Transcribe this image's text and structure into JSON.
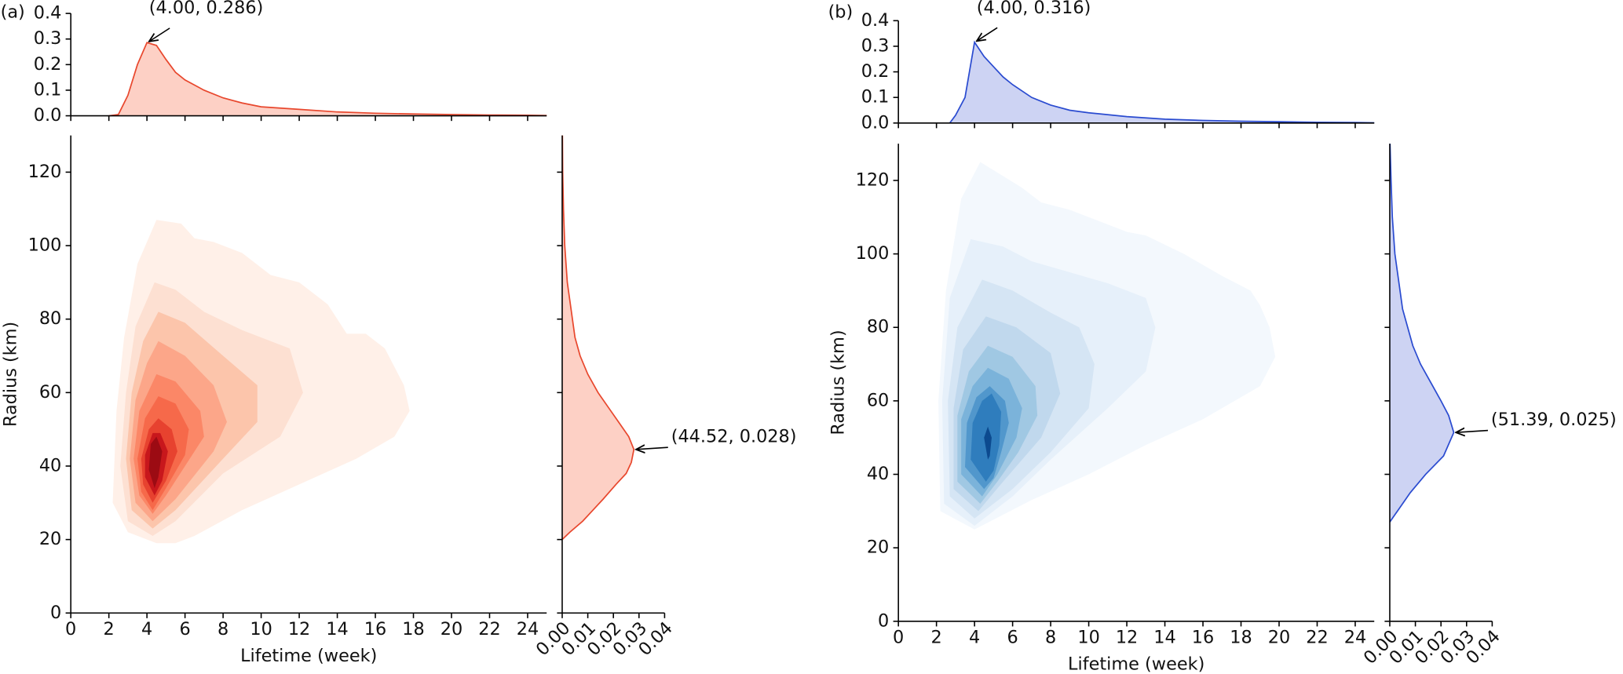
{
  "chart_data": [
    {
      "type": "contour",
      "label": "(a)",
      "xlabel": "Lifetime (week)",
      "ylabel": "Radius (km)",
      "xlim": [
        0,
        25
      ],
      "ylim": [
        0,
        130
      ],
      "xticks": [
        0,
        2,
        4,
        6,
        8,
        10,
        12,
        14,
        16,
        18,
        20,
        22,
        24
      ],
      "yticks": [
        0,
        20,
        40,
        60,
        80,
        100,
        120
      ],
      "contours": [
        {
          "color": "#fff0e8",
          "x": [
            4.5,
            3,
            2.2,
            2.4,
            2.8,
            3.5,
            4.5,
            5.8,
            6.5,
            7.5,
            9,
            10.5,
            12,
            13.5,
            14.5,
            15.5,
            16.5,
            17.5,
            17.8,
            17,
            15,
            12,
            9,
            6.5,
            5.5
          ],
          "y": [
            19,
            22,
            30,
            55,
            75,
            95,
            107,
            106,
            102,
            101,
            98,
            92,
            90,
            84,
            76,
            76,
            72,
            62,
            55,
            48,
            42,
            35,
            28,
            21,
            19
          ]
        },
        {
          "color": "#fde0d2",
          "x": [
            4.3,
            3,
            2.6,
            2.9,
            3.4,
            4.4,
            5.5,
            7,
            9,
            11.5,
            12.2,
            11,
            8,
            5.5
          ],
          "y": [
            21,
            25,
            40,
            60,
            78,
            90,
            88,
            82,
            77,
            72,
            60,
            48,
            38,
            25
          ]
        },
        {
          "color": "#fcc5ab",
          "x": [
            4.3,
            3.2,
            2.9,
            3.2,
            3.8,
            4.6,
            6,
            8,
            9.8,
            9.8,
            8,
            5.5
          ],
          "y": [
            23,
            28,
            42,
            60,
            74,
            82,
            79,
            70,
            62,
            52,
            42,
            28
          ]
        },
        {
          "color": "#fca689",
          "x": [
            4.3,
            3.4,
            3.1,
            3.4,
            4,
            4.6,
            6,
            7.5,
            8.2,
            7.5,
            5.5
          ],
          "y": [
            25,
            30,
            42,
            58,
            68,
            74,
            70,
            62,
            52,
            44,
            31
          ]
        },
        {
          "color": "#fb8767",
          "x": [
            4.3,
            3.6,
            3.3,
            3.6,
            4.5,
            5.5,
            6.8,
            7,
            6,
            5
          ],
          "y": [
            27,
            32,
            42,
            55,
            65,
            63,
            55,
            48,
            40,
            32
          ]
        },
        {
          "color": "#f6694a",
          "x": [
            4.3,
            3.7,
            3.5,
            3.9,
            4.6,
            5.5,
            6.2,
            6,
            5
          ],
          "y": [
            28,
            33,
            42,
            53,
            59,
            57,
            50,
            43,
            34
          ]
        },
        {
          "color": "#e7422f",
          "x": [
            4.3,
            3.8,
            3.7,
            4.1,
            4.6,
            5.3,
            5.6,
            5
          ],
          "y": [
            30,
            35,
            42,
            50,
            53,
            50,
            44,
            36
          ]
        },
        {
          "color": "#c8171c",
          "x": [
            4.4,
            3.9,
            3.9,
            4.3,
            4.7,
            5.1,
            4.8
          ],
          "y": [
            32,
            37,
            43,
            49,
            49,
            44,
            36
          ]
        },
        {
          "color": "#9c0b13",
          "x": [
            4.4,
            4.1,
            4.2,
            4.5,
            4.8,
            4.6
          ],
          "y": [
            34,
            39,
            46,
            48,
            44,
            37
          ]
        }
      ],
      "line_color": "#e8472d",
      "fill_color": "#fdd0c5",
      "top": {
        "x": [
          2,
          2.5,
          3,
          3.5,
          4,
          4.5,
          5,
          5.5,
          6,
          7,
          8,
          9,
          10,
          12,
          14,
          16,
          18,
          20,
          22,
          24,
          25
        ],
        "values": [
          0,
          0.005,
          0.08,
          0.2,
          0.286,
          0.275,
          0.22,
          0.17,
          0.14,
          0.1,
          0.07,
          0.05,
          0.035,
          0.025,
          0.015,
          0.01,
          0.007,
          0.005,
          0.003,
          0.002,
          0.001
        ],
        "ylim": [
          0,
          0.4
        ],
        "yticks": [
          {
            "value": 0,
            "label": "0.0"
          },
          {
            "value": 0.1,
            "label": "0.1"
          },
          {
            "value": 0.2,
            "label": "0.2"
          },
          {
            "value": 0.3,
            "label": "0.3"
          },
          {
            "value": 0.4,
            "label": "0.4"
          }
        ],
        "annotation": {
          "text": "(4.00, 0.286)",
          "x": 4,
          "y": 0.286
        }
      },
      "right": {
        "x": [
          20,
          22,
          25,
          28,
          31,
          35,
          38,
          41,
          44.52,
          48,
          52,
          56,
          60,
          65,
          70,
          75,
          80,
          85,
          90,
          100,
          110,
          120,
          130
        ],
        "values": [
          0,
          0.003,
          0.008,
          0.012,
          0.016,
          0.021,
          0.025,
          0.027,
          0.028,
          0.026,
          0.022,
          0.018,
          0.014,
          0.01,
          0.007,
          0.005,
          0.004,
          0.003,
          0.002,
          0.001,
          0.0005,
          0.0002,
          0.0001
        ],
        "xlim": [
          0,
          0.04
        ],
        "xticks": [
          {
            "value": 0,
            "label": "0.00"
          },
          {
            "value": 0.01,
            "label": "0.01"
          },
          {
            "value": 0.02,
            "label": "0.02"
          },
          {
            "value": 0.03,
            "label": "0.03"
          },
          {
            "value": 0.04,
            "label": "0.04"
          }
        ],
        "annotation": {
          "text": "(44.52, 0.028)",
          "x": 44.52,
          "y": 0.028
        }
      }
    },
    {
      "type": "contour",
      "label": "(b)",
      "xlabel": "Lifetime (week)",
      "ylabel": "Radius (km)",
      "xlim": [
        0,
        25
      ],
      "ylim": [
        0,
        130
      ],
      "xticks": [
        0,
        2,
        4,
        6,
        8,
        10,
        12,
        14,
        16,
        18,
        20,
        22,
        24
      ],
      "yticks": [
        0,
        20,
        40,
        60,
        80,
        100,
        120
      ],
      "contours": [
        {
          "color": "#f3f8fd",
          "x": [
            4,
            2.2,
            2.1,
            2.5,
            3.3,
            4.3,
            6.5,
            7.5,
            9,
            10,
            12,
            13,
            15,
            17,
            18.5,
            19,
            19.5,
            19.8,
            19,
            16,
            13,
            10,
            7
          ],
          "y": [
            25,
            30,
            60,
            90,
            115,
            125,
            118,
            114,
            112,
            110,
            106,
            105,
            100,
            94,
            90,
            86,
            80,
            72,
            64,
            55,
            48,
            40,
            33
          ]
        },
        {
          "color": "#e6f0fa",
          "x": [
            4,
            2.4,
            2.3,
            2.7,
            3.8,
            5.5,
            7,
            9,
            11,
            13,
            13.5,
            13,
            11,
            8,
            6
          ],
          "y": [
            26,
            32,
            60,
            88,
            104,
            102,
            98,
            95,
            92,
            88,
            80,
            68,
            58,
            44,
            34
          ]
        },
        {
          "color": "#d5e5f4",
          "x": [
            4,
            2.7,
            2.6,
            3.1,
            4.4,
            6,
            8,
            9.5,
            10.3,
            10,
            8,
            6
          ],
          "y": [
            28,
            34,
            60,
            80,
            93,
            90,
            84,
            80,
            70,
            58,
            46,
            36
          ]
        },
        {
          "color": "#c0d8ed",
          "x": [
            4.2,
            2.9,
            2.9,
            3.4,
            4.6,
            6.2,
            8,
            8.5,
            7.5,
            5.5
          ],
          "y": [
            30,
            36,
            58,
            74,
            83,
            80,
            73,
            62,
            50,
            38
          ]
        },
        {
          "color": "#a0c8e3",
          "x": [
            4.3,
            3.1,
            3.1,
            3.7,
            4.7,
            6,
            7.2,
            7.3,
            6.3,
            5.2
          ],
          "y": [
            32,
            38,
            56,
            68,
            75,
            72,
            64,
            56,
            46,
            38
          ]
        },
        {
          "color": "#7bb3da",
          "x": [
            4.4,
            3.3,
            3.3,
            3.9,
            4.7,
            5.8,
            6.5,
            6.2,
            5.2
          ],
          "y": [
            34,
            40,
            55,
            64,
            69,
            66,
            58,
            50,
            40
          ]
        },
        {
          "color": "#5197cc",
          "x": [
            4.5,
            3.5,
            3.6,
            4.1,
            4.8,
            5.6,
            5.8,
            5.4,
            5
          ],
          "y": [
            36,
            42,
            54,
            61,
            64,
            60,
            54,
            46,
            39
          ]
        },
        {
          "color": "#2f7dbd",
          "x": [
            4.6,
            3.8,
            3.9,
            4.4,
            4.9,
            5.4,
            5.3,
            5
          ],
          "y": [
            38,
            44,
            54,
            60,
            62,
            57,
            48,
            41
          ]
        },
        {
          "color": "#0c4a8f",
          "x": [
            4.7,
            4.5,
            4.7,
            4.9,
            4.8
          ],
          "y": [
            44,
            50,
            53,
            50,
            45
          ]
        }
      ],
      "line_color": "#2a4bd0",
      "fill_color": "#cdd3f3",
      "top": {
        "x": [
          2.7,
          3,
          3.5,
          4,
          4.5,
          5,
          5.5,
          6,
          7,
          8,
          9,
          10,
          12,
          14,
          16,
          18,
          20,
          22,
          24,
          25
        ],
        "values": [
          0,
          0.03,
          0.1,
          0.316,
          0.26,
          0.22,
          0.18,
          0.15,
          0.1,
          0.07,
          0.05,
          0.04,
          0.025,
          0.015,
          0.01,
          0.007,
          0.005,
          0.003,
          0.002,
          0.001
        ],
        "ylim": [
          0,
          0.4
        ],
        "yticks": [
          {
            "value": 0,
            "label": "0.0"
          },
          {
            "value": 0.1,
            "label": "0.1"
          },
          {
            "value": 0.2,
            "label": "0.2"
          },
          {
            "value": 0.3,
            "label": "0.3"
          },
          {
            "value": 0.4,
            "label": "0.4"
          }
        ],
        "annotation": {
          "text": "(4.00, 0.316)",
          "x": 4,
          "y": 0.316
        }
      },
      "right": {
        "x": [
          27,
          30,
          35,
          40,
          45,
          51.39,
          56,
          60,
          65,
          70,
          75,
          80,
          85,
          90,
          95,
          100,
          110,
          120,
          130
        ],
        "values": [
          0,
          0.003,
          0.008,
          0.014,
          0.021,
          0.025,
          0.023,
          0.02,
          0.016,
          0.012,
          0.009,
          0.007,
          0.005,
          0.004,
          0.003,
          0.002,
          0.001,
          0.0005,
          0.0001
        ],
        "xlim": [
          0,
          0.04
        ],
        "xticks": [
          {
            "value": 0,
            "label": "0.00"
          },
          {
            "value": 0.01,
            "label": "0.01"
          },
          {
            "value": 0.02,
            "label": "0.02"
          },
          {
            "value": 0.03,
            "label": "0.03"
          },
          {
            "value": 0.04,
            "label": "0.04"
          }
        ],
        "annotation": {
          "text": "(51.39, 0.025)",
          "x": 51.39,
          "y": 0.025
        }
      }
    }
  ]
}
